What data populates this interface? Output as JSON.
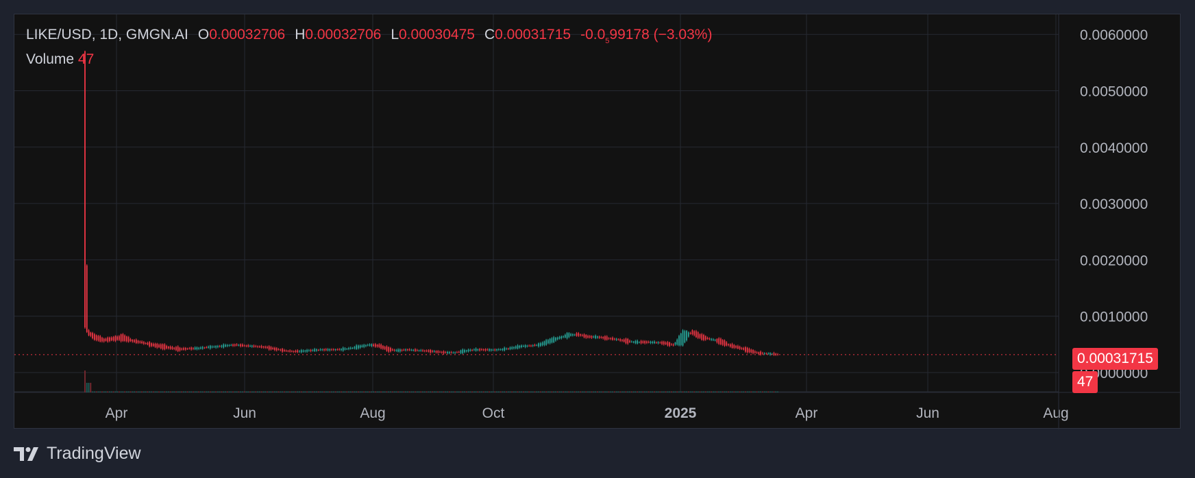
{
  "legend": {
    "symbol": "LIKE/USD, 1D, GMGN.AI",
    "open_label": "O",
    "open": "0.00032706",
    "high_label": "H",
    "high": "0.00032706",
    "low_label": "L",
    "low": "0.00030475",
    "close_label": "C",
    "close": "0.00031715",
    "change_prefix": "-0.0",
    "change_sub": "5",
    "change_rest": "99178",
    "change_pct": "(−3.03%)"
  },
  "volume_legend": {
    "label": "Volume",
    "value": "47"
  },
  "price_badge": "0.00031715",
  "volume_badge": "47",
  "brand": "TradingView",
  "colors": {
    "up": "#26a69a",
    "down": "#f23645",
    "text": "#b2b5be",
    "grid": "#262932"
  },
  "chart_data": {
    "type": "candlestick",
    "y_ticks": [
      "0.0060000",
      "0.0050000",
      "0.0040000",
      "0.0030000",
      "0.0020000",
      "0.0010000",
      "0.0000000"
    ],
    "ylim": [
      -0.0006,
      0.00633
    ],
    "x_ticks": [
      "Apr",
      "Jun",
      "Aug",
      "Oct",
      "2025",
      "Apr",
      "Jun",
      "Aug"
    ],
    "x_start": "2024-03-13",
    "last_close": 0.00031715,
    "series": [
      {
        "name": "LIKE/USD",
        "points": [
          [
            0,
            0.0057,
            0.0008
          ],
          [
            1,
            0.0019,
            0.00072
          ],
          [
            2,
            0.00075,
            0.00066
          ],
          [
            5,
            0.00068,
            0.00058
          ],
          [
            10,
            0.0006,
            0.00055
          ],
          [
            15,
            0.00063,
            0.00057
          ],
          [
            20,
            0.00068,
            0.00056
          ],
          [
            25,
            0.00058,
            0.00055
          ],
          [
            30,
            0.00055,
            0.00052
          ],
          [
            35,
            0.00052,
            0.00047
          ],
          [
            40,
            0.0005,
            0.00043
          ],
          [
            45,
            0.00046,
            0.00042
          ],
          [
            50,
            0.00044,
            0.00039
          ],
          [
            55,
            0.00043,
            0.00042
          ],
          [
            60,
            0.00042,
            0.00044
          ],
          [
            65,
            0.00044,
            0.00046
          ],
          [
            70,
            0.00045,
            0.00047
          ],
          [
            75,
            0.00047,
            0.00049
          ],
          [
            80,
            0.0005,
            0.00048
          ],
          [
            85,
            0.00048,
            0.00047
          ],
          [
            90,
            0.00047,
            0.00046
          ],
          [
            95,
            0.00046,
            0.00044
          ],
          [
            100,
            0.00044,
            0.0004
          ],
          [
            105,
            0.0004,
            0.00038
          ],
          [
            110,
            0.00038,
            0.00037
          ],
          [
            115,
            0.00037,
            0.00039
          ],
          [
            120,
            0.00039,
            0.0004
          ],
          [
            125,
            0.0004,
            0.00041
          ],
          [
            130,
            0.00041,
            0.0004
          ],
          [
            135,
            0.0004,
            0.00042
          ],
          [
            140,
            0.00042,
            0.00044
          ],
          [
            145,
            0.00044,
            0.00048
          ],
          [
            150,
            0.00048,
            0.0005
          ],
          [
            155,
            0.0005,
            0.00045
          ],
          [
            160,
            0.00045,
            0.00037
          ],
          [
            165,
            0.00037,
            0.00041
          ],
          [
            170,
            0.00041,
            0.0004
          ],
          [
            175,
            0.0004,
            0.00039
          ],
          [
            180,
            0.00039,
            0.00038
          ],
          [
            185,
            0.00038,
            0.00036
          ],
          [
            190,
            0.00036,
            0.00035
          ],
          [
            195,
            0.00035,
            0.00036
          ],
          [
            200,
            0.00036,
            0.0004
          ],
          [
            205,
            0.0004,
            0.00041
          ],
          [
            210,
            0.00041,
            0.0004
          ],
          [
            215,
            0.0004,
            0.0004
          ],
          [
            220,
            0.0004,
            0.00042
          ],
          [
            225,
            0.00042,
            0.00045
          ],
          [
            230,
            0.00045,
            0.00048
          ],
          [
            235,
            0.00048,
            0.00047
          ],
          [
            240,
            0.00047,
            0.00052
          ],
          [
            245,
            0.00052,
            0.0006
          ],
          [
            250,
            0.0006,
            0.00063
          ],
          [
            255,
            0.00063,
            0.0007
          ],
          [
            260,
            0.0007,
            0.00065
          ],
          [
            265,
            0.00065,
            0.00062
          ],
          [
            270,
            0.00062,
            0.00064
          ],
          [
            275,
            0.00064,
            0.00058
          ],
          [
            280,
            0.00058,
            0.0006
          ],
          [
            285,
            0.0006,
            0.00052
          ],
          [
            290,
            0.00052,
            0.00056
          ],
          [
            295,
            0.00056,
            0.00052
          ],
          [
            300,
            0.00052,
            0.00055
          ],
          [
            305,
            0.00055,
            0.0005
          ],
          [
            310,
            0.0005,
            0.00048
          ],
          [
            315,
            0.00048,
            0.00075
          ],
          [
            320,
            0.00075,
            0.00068
          ],
          [
            325,
            0.00068,
            0.00058
          ],
          [
            330,
            0.00058,
            0.0006
          ],
          [
            335,
            0.0006,
            0.0005
          ],
          [
            340,
            0.0005,
            0.00046
          ],
          [
            345,
            0.00046,
            0.00042
          ],
          [
            350,
            0.00042,
            0.00036
          ],
          [
            355,
            0.00036,
            0.00033
          ],
          [
            360,
            0.00033,
            0.00034
          ],
          [
            365,
            0.00032706,
            0.00031715
          ]
        ]
      }
    ]
  }
}
